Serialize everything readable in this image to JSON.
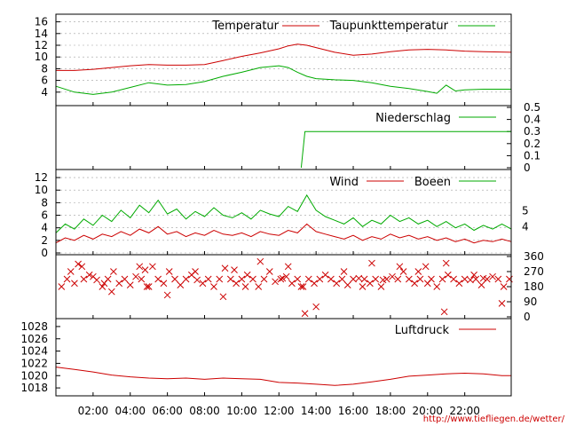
{
  "credit_text": "http://www.tiefliegen.de/wetter/",
  "x_axis": {
    "range": [
      0,
      24.5
    ],
    "ticks": [
      2,
      4,
      6,
      8,
      10,
      12,
      14,
      16,
      18,
      20,
      22
    ],
    "tick_labels": [
      "02:00",
      "04:00",
      "06:00",
      "08:00",
      "10:00",
      "12:00",
      "14:00",
      "16:00",
      "18:00",
      "20:00",
      "22:00"
    ]
  },
  "colors": {
    "primary": "#cc0000",
    "secondary": "#00aa00"
  },
  "chart_data": [
    {
      "type": "line",
      "name": "temperature-panel",
      "ylim": [
        2,
        17
      ],
      "yticks": [
        4,
        6,
        8,
        10,
        12,
        14,
        16
      ],
      "ytick_labels": [
        "4",
        "6",
        "8",
        "10",
        "12",
        "14",
        "16"
      ],
      "grid": "dashed-horizontal",
      "legend_placement": "top",
      "series": [
        {
          "name": "Temperatur",
          "color": "#cc0000",
          "x": [
            0,
            1,
            2,
            3,
            4,
            5,
            6,
            7,
            8,
            9,
            10,
            11,
            12,
            12.5,
            13,
            13.5,
            14,
            15,
            16,
            17,
            18,
            19,
            20,
            21,
            22,
            23,
            24.5
          ],
          "y": [
            7.7,
            7.7,
            7.9,
            8.2,
            8.5,
            8.7,
            8.6,
            8.6,
            8.7,
            9.4,
            10.1,
            10.7,
            11.4,
            11.9,
            12.2,
            12.0,
            11.6,
            10.8,
            10.3,
            10.5,
            10.9,
            11.2,
            11.3,
            11.2,
            11.0,
            10.9,
            10.8
          ]
        },
        {
          "name": "Taupunkttemperatur",
          "color": "#00aa00",
          "x": [
            0,
            1,
            2,
            3,
            4,
            5,
            6,
            7,
            8,
            9,
            10,
            11,
            12,
            12.5,
            13,
            13.5,
            14,
            15,
            16,
            17,
            18,
            19,
            20,
            20.5,
            21,
            21.5,
            22,
            23,
            24.5
          ],
          "y": [
            5.0,
            4.0,
            3.6,
            4.0,
            4.8,
            5.6,
            5.2,
            5.3,
            5.8,
            6.7,
            7.4,
            8.2,
            8.5,
            8.2,
            7.4,
            6.7,
            6.3,
            6.1,
            6.0,
            5.6,
            5.0,
            4.6,
            4.1,
            3.8,
            5.2,
            4.2,
            4.4,
            4.5,
            4.5
          ]
        }
      ]
    },
    {
      "type": "line",
      "name": "precipitation-panel",
      "ylim": [
        0,
        0.5
      ],
      "yticks": [
        0,
        0.1,
        0.2,
        0.3,
        0.4,
        0.5
      ],
      "ytick_labels": [
        "0",
        "0.1",
        "0.2",
        "0.3",
        "0.4",
        "0.5"
      ],
      "y_axis_side": "right",
      "legend_placement": "top-right",
      "series": [
        {
          "name": "Niederschlag",
          "color": "#00aa00",
          "x": [
            13.2,
            13.4,
            24.5
          ],
          "y": [
            0,
            0.3,
            0.3
          ]
        }
      ]
    },
    {
      "type": "line",
      "name": "wind-panel",
      "ylim": [
        0,
        13
      ],
      "yticks": [
        0,
        2,
        4,
        6,
        8,
        10,
        12
      ],
      "ytick_labels": [
        "0",
        "2",
        "4",
        "6",
        "8",
        "10",
        "12"
      ],
      "secondary_ticks": {
        "side": "right",
        "labels": [
          "4",
          "5"
        ],
        "positions": [
          4.2,
          6.7
        ]
      },
      "grid": "dashed-horizontal",
      "legend_placement": "top-right",
      "series": [
        {
          "name": "Wind",
          "color": "#cc0000",
          "x": [
            0,
            0.5,
            1,
            1.5,
            2,
            2.5,
            3,
            3.5,
            4,
            4.5,
            5,
            5.5,
            6,
            6.5,
            7,
            7.5,
            8,
            8.5,
            9,
            9.5,
            10,
            10.5,
            11,
            11.5,
            12,
            12.5,
            13,
            13.5,
            14,
            14.5,
            15,
            15.5,
            16,
            16.5,
            17,
            17.5,
            18,
            18.5,
            19,
            19.5,
            20,
            20.5,
            21,
            21.5,
            22,
            22.5,
            23,
            23.5,
            24,
            24.5
          ],
          "y": [
            1.6,
            2.4,
            2.0,
            2.8,
            2.2,
            3.0,
            2.6,
            3.4,
            2.8,
            3.8,
            3.2,
            4.2,
            3.0,
            3.4,
            2.6,
            3.2,
            2.8,
            3.6,
            3.0,
            2.8,
            3.2,
            2.6,
            3.4,
            3.0,
            2.8,
            3.6,
            3.2,
            4.6,
            3.4,
            3.0,
            2.6,
            2.2,
            2.8,
            2.0,
            2.6,
            2.2,
            3.0,
            2.4,
            2.8,
            2.2,
            2.6,
            2.0,
            2.4,
            1.8,
            2.2,
            1.6,
            2.0,
            1.8,
            2.2,
            1.8
          ]
        },
        {
          "name": "Boeen",
          "color": "#00aa00",
          "x": [
            0,
            0.5,
            1,
            1.5,
            2,
            2.5,
            3,
            3.5,
            4,
            4.5,
            5,
            5.5,
            6,
            6.5,
            7,
            7.5,
            8,
            8.5,
            9,
            9.5,
            10,
            10.5,
            11,
            11.5,
            12,
            12.5,
            13,
            13.5,
            14,
            14.5,
            15,
            15.5,
            16,
            16.5,
            17,
            17.5,
            18,
            18.5,
            19,
            19.5,
            20,
            20.5,
            21,
            21.5,
            22,
            22.5,
            23,
            23.5,
            24,
            24.5
          ],
          "y": [
            3.2,
            4.6,
            3.8,
            5.4,
            4.4,
            6.0,
            5.0,
            6.8,
            5.6,
            7.6,
            6.4,
            8.4,
            6.2,
            7.0,
            5.4,
            6.6,
            5.8,
            7.2,
            6.0,
            5.6,
            6.4,
            5.4,
            6.8,
            6.2,
            5.8,
            7.4,
            6.6,
            9.2,
            6.8,
            5.8,
            5.2,
            4.6,
            5.6,
            4.2,
            5.2,
            4.6,
            6.0,
            5.0,
            5.6,
            4.6,
            5.2,
            4.2,
            5.0,
            4.0,
            4.6,
            3.6,
            4.4,
            3.8,
            4.6,
            3.8
          ]
        }
      ]
    },
    {
      "type": "scatter",
      "name": "wind-direction-panel",
      "ylim": [
        0,
        360
      ],
      "yticks": [
        0,
        90,
        180,
        270,
        360
      ],
      "ytick_labels": [
        "0",
        "90",
        "180",
        "270",
        "360"
      ],
      "y_axis_side": "right",
      "marker": "x",
      "series": [
        {
          "name": "",
          "color": "#cc0000",
          "x": [
            0.3,
            0.6,
            1.0,
            1.2,
            1.5,
            1.8,
            2.2,
            2.5,
            2.8,
            3.1,
            3.4,
            3.7,
            4.0,
            4.3,
            4.6,
            4.9,
            5.2,
            5.5,
            5.8,
            6.1,
            6.4,
            6.7,
            7.0,
            7.3,
            7.6,
            7.9,
            8.2,
            8.5,
            8.8,
            9.1,
            9.4,
            9.7,
            10.0,
            10.3,
            10.6,
            10.9,
            11.2,
            11.5,
            11.8,
            12.1,
            12.4,
            12.7,
            13.0,
            13.3,
            13.6,
            13.9,
            14.2,
            14.5,
            14.8,
            15.1,
            15.4,
            15.7,
            16.0,
            16.3,
            16.6,
            16.9,
            17.2,
            17.5,
            17.8,
            18.1,
            18.4,
            18.7,
            19.0,
            19.3,
            19.6,
            19.9,
            20.2,
            20.5,
            20.8,
            21.1,
            21.4,
            21.7,
            22.0,
            22.3,
            22.6,
            22.9,
            23.2,
            23.5,
            23.8,
            24.1,
            24.4,
            0.8,
            1.4,
            2.0,
            3.0,
            4.5,
            5.0,
            6.0,
            7.5,
            9.0,
            10.2,
            11.0,
            12.5,
            13.2,
            14.0,
            15.5,
            16.5,
            17.0,
            18.5,
            19.5,
            20.0,
            21.0,
            22.5,
            23.0,
            24.0,
            2.6,
            4.8,
            9.6,
            12.2,
            13.4,
            17.6,
            20.9
          ],
          "y": [
            180,
            225,
            200,
            315,
            225,
            250,
            220,
            180,
            225,
            270,
            200,
            225,
            190,
            240,
            225,
            180,
            300,
            225,
            200,
            270,
            225,
            190,
            225,
            250,
            220,
            200,
            225,
            180,
            225,
            290,
            225,
            200,
            225,
            250,
            225,
            180,
            225,
            270,
            210,
            225,
            240,
            200,
            225,
            180,
            225,
            200,
            225,
            250,
            225,
            200,
            225,
            190,
            225,
            230,
            225,
            200,
            225,
            180,
            225,
            240,
            225,
            270,
            225,
            200,
            225,
            300,
            225,
            180,
            225,
            250,
            225,
            200,
            225,
            220,
            225,
            190,
            225,
            240,
            225,
            180,
            225,
            270,
            300,
            240,
            150,
            300,
            180,
            130,
            270,
            120,
            180,
            330,
            300,
            180,
            60,
            270,
            180,
            320,
            300,
            270,
            200,
            320,
            250,
            230,
            80,
            200,
            280,
            280,
            230,
            20,
            220,
            30
          ]
        }
      ]
    },
    {
      "type": "line",
      "name": "pressure-panel",
      "ylim": [
        1017,
        1029
      ],
      "yticks": [
        1018,
        1020,
        1022,
        1024,
        1026,
        1028
      ],
      "ytick_labels": [
        "1018",
        "1020",
        "1022",
        "1024",
        "1026",
        "1028"
      ],
      "legend_placement": "top-right",
      "series": [
        {
          "name": "Luftdruck",
          "color": "#cc0000",
          "x": [
            0,
            1,
            2,
            3,
            4,
            5,
            6,
            7,
            8,
            9,
            10,
            11,
            12,
            13,
            14,
            15,
            16,
            17,
            18,
            19,
            20,
            21,
            22,
            23,
            24,
            24.5
          ],
          "y": [
            1021.4,
            1021.0,
            1020.6,
            1020.1,
            1019.8,
            1019.6,
            1019.5,
            1019.6,
            1019.4,
            1019.6,
            1019.5,
            1019.4,
            1018.9,
            1018.8,
            1018.6,
            1018.4,
            1018.6,
            1019.0,
            1019.4,
            1019.9,
            1020.1,
            1020.3,
            1020.4,
            1020.3,
            1020.0,
            1020.0
          ]
        }
      ]
    }
  ]
}
